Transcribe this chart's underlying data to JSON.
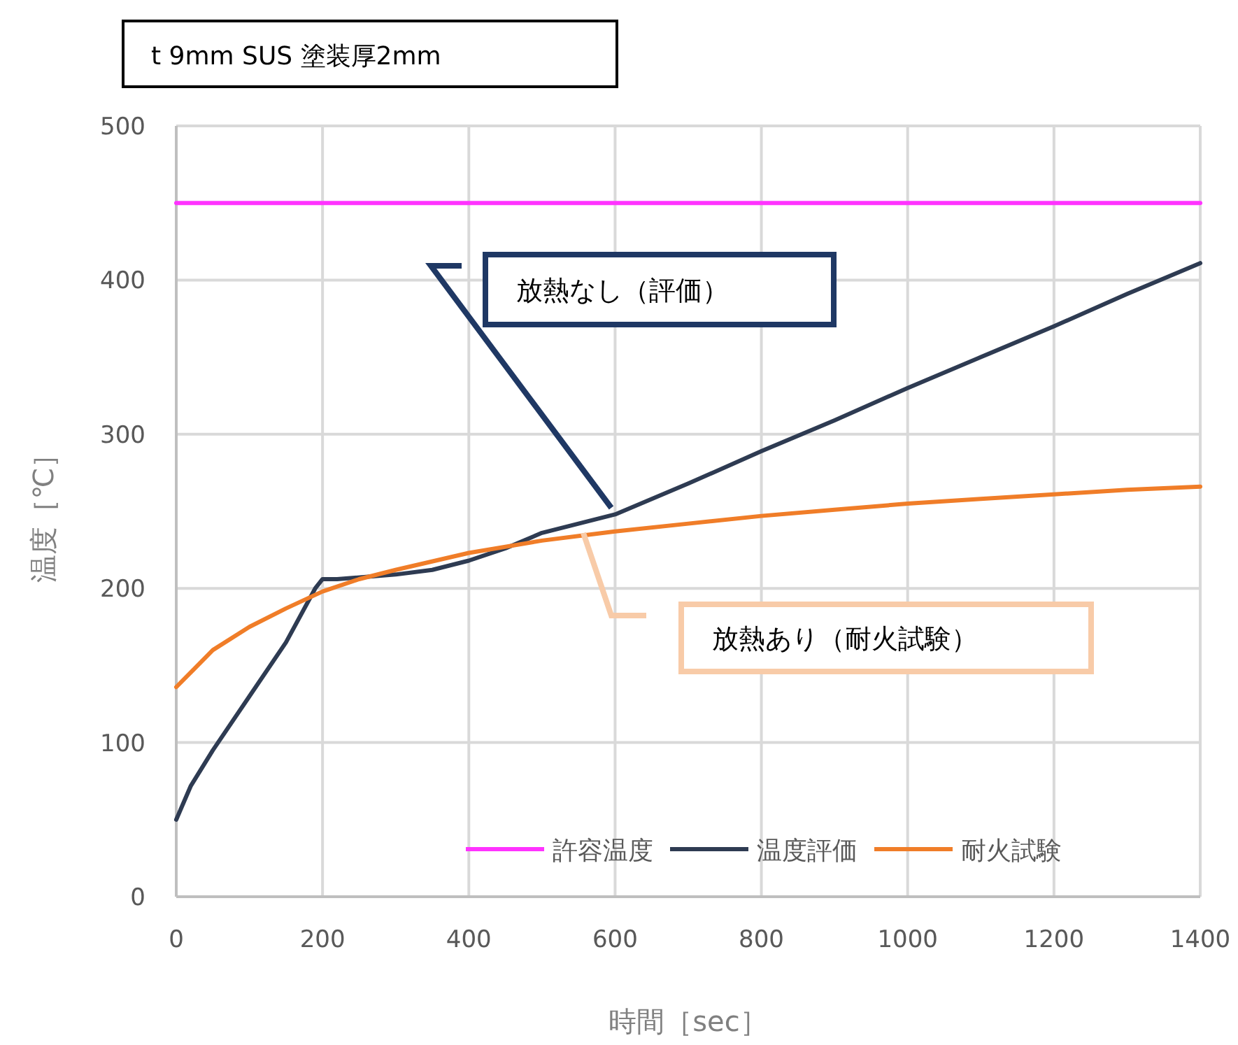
{
  "chart_data": {
    "type": "line",
    "title": "t 9mm SUS  塗装厚2mm",
    "xlabel": "時間［sec］",
    "ylabel": "温度［℃］",
    "xlim": [
      0,
      1400
    ],
    "ylim": [
      0,
      500
    ],
    "xticks": [
      0,
      200,
      400,
      600,
      800,
      1000,
      1200,
      1400
    ],
    "yticks": [
      0,
      100,
      200,
      300,
      400,
      500
    ],
    "grid": true,
    "legend": "bottom right",
    "series": [
      {
        "name": "許容温度",
        "color": "#ff33ff",
        "x": [
          0,
          1400
        ],
        "values": [
          450,
          450
        ]
      },
      {
        "name": "温度評価",
        "color": "#2e3b52",
        "x": [
          0,
          20,
          50,
          100,
          150,
          190,
          200,
          220,
          300,
          350,
          400,
          450,
          500,
          600,
          700,
          800,
          900,
          1000,
          1100,
          1200,
          1300,
          1400
        ],
        "values": [
          50,
          72,
          95,
          130,
          165,
          200,
          206,
          206,
          209,
          212,
          218,
          226,
          236,
          248,
          268,
          289,
          309,
          330,
          350,
          370,
          391,
          411
        ]
      },
      {
        "name": "耐火試験",
        "color": "#f07d28",
        "x": [
          0,
          25,
          50,
          100,
          150,
          200,
          250,
          300,
          400,
          500,
          600,
          700,
          800,
          900,
          1000,
          1100,
          1200,
          1300,
          1400
        ],
        "values": [
          136,
          148,
          160,
          175,
          187,
          198,
          206,
          212,
          223,
          231,
          237,
          242,
          247,
          251,
          255,
          258,
          261,
          264,
          266
        ]
      }
    ],
    "annotations": [
      "放熱なし（評価）",
      "放熱あり（耐火試験）"
    ]
  }
}
